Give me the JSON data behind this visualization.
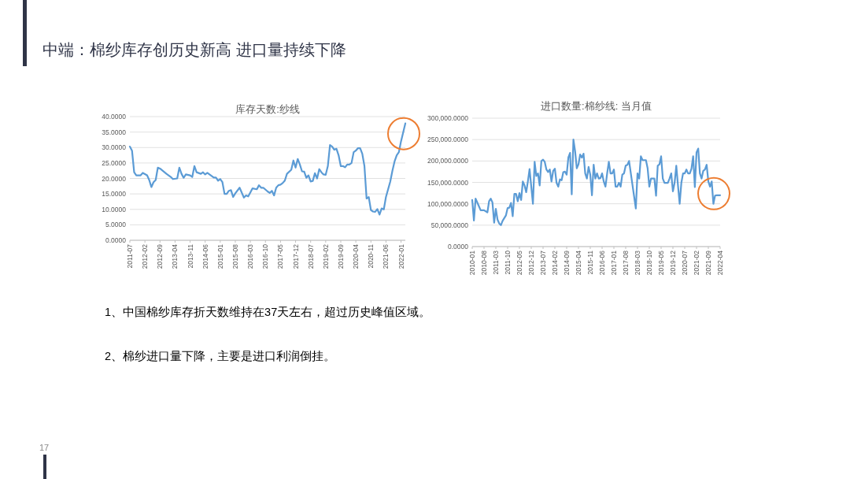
{
  "chart_data": [
    {
      "type": "line",
      "title": "库存天数:纱线",
      "grid": "y",
      "xlim": [
        "2011-07",
        "2022-03"
      ],
      "xticks": [
        "2011-07",
        "2012-02",
        "2012-09",
        "2013-04",
        "2013-11",
        "2014-06",
        "2015-01",
        "2015-08",
        "2016-03",
        "2016-10",
        "2017-05",
        "2017-12",
        "2018-07",
        "2019-02",
        "2019-09",
        "2020-04",
        "2020-11",
        "2021-06",
        "2022-01"
      ],
      "ylim": [
        0,
        40
      ],
      "yticks": [
        {
          "value": 0,
          "label": "0.0000"
        },
        {
          "value": 5,
          "label": "5.0000"
        },
        {
          "value": 10,
          "label": "10.0000"
        },
        {
          "value": 15,
          "label": "15.0000"
        },
        {
          "value": 20,
          "label": "20.0000"
        },
        {
          "value": 25,
          "label": "25.0000"
        },
        {
          "value": 30,
          "label": "30.0000"
        },
        {
          "value": 35,
          "label": "35.0000"
        },
        {
          "value": 40,
          "label": "40.0000"
        }
      ],
      "x": [
        "2011-07",
        "2011-08",
        "2011-09",
        "2011-10",
        "2011-12",
        "2012-01",
        "2012-03",
        "2012-04",
        "2012-05",
        "2012-06",
        "2012-07",
        "2012-08",
        "2012-09",
        "2012-12",
        "2013-02",
        "2013-03",
        "2013-05",
        "2013-06",
        "2013-07",
        "2013-08",
        "2013-09",
        "2013-11",
        "2013-12",
        "2014-01",
        "2014-02",
        "2014-04",
        "2014-05",
        "2014-06",
        "2014-07",
        "2014-09",
        "2014-10",
        "2014-11",
        "2014-12",
        "2015-01",
        "2015-02",
        "2015-03",
        "2015-04",
        "2015-05",
        "2015-06",
        "2015-07",
        "2015-08",
        "2015-10",
        "2015-12",
        "2016-01",
        "2016-02",
        "2016-03",
        "2016-04",
        "2016-06",
        "2016-07",
        "2016-08",
        "2016-09",
        "2016-11",
        "2016-12",
        "2017-01",
        "2017-02",
        "2017-03",
        "2017-04",
        "2017-05",
        "2017-06",
        "2017-07",
        "2017-08",
        "2017-10",
        "2017-11",
        "2017-12",
        "2018-01",
        "2018-02",
        "2018-03",
        "2018-04",
        "2018-05",
        "2018-06",
        "2018-07",
        "2018-08",
        "2018-09",
        "2018-10",
        "2018-11",
        "2018-12",
        "2019-01",
        "2019-02",
        "2019-03",
        "2019-04",
        "2019-05",
        "2019-06",
        "2019-07",
        "2019-08",
        "2019-09",
        "2019-10",
        "2019-11",
        "2019-12",
        "2020-01",
        "2020-02",
        "2020-03",
        "2020-04",
        "2020-05",
        "2020-06",
        "2020-07",
        "2020-08",
        "2020-09",
        "2020-10",
        "2020-11",
        "2020-12",
        "2021-01",
        "2021-02",
        "2021-03",
        "2021-04",
        "2021-05",
        "2021-06",
        "2021-08",
        "2021-09",
        "2021-10",
        "2021-11",
        "2021-12",
        "2022-01",
        "2022-03"
      ],
      "series": [
        {
          "color": "#5b9bd5",
          "values": [
            30.3,
            29,
            22,
            21,
            21,
            21.8,
            21,
            19.5,
            17.2,
            18.8,
            19.5,
            23.5,
            23.2,
            21.5,
            20.5,
            19.8,
            20,
            23.5,
            21.5,
            20.2,
            21.3,
            21,
            20.5,
            24,
            22,
            21.5,
            22,
            21.3,
            21.8,
            20.8,
            20.3,
            20.3,
            19.3,
            19.8,
            18.8,
            15,
            15,
            16,
            16.2,
            14,
            15.2,
            17,
            13.8,
            14.5,
            14.2,
            15.5,
            16.8,
            16.5,
            17.8,
            17,
            17,
            15.8,
            15.3,
            16,
            14.5,
            17,
            17.8,
            18,
            18.5,
            19.3,
            21.5,
            22.8,
            25.8,
            23.5,
            26.3,
            24.5,
            22.3,
            22.2,
            20.2,
            21,
            19,
            19.2,
            21.7,
            20,
            23,
            22,
            21.3,
            21.2,
            24,
            30.8,
            30.3,
            29.3,
            29.6,
            27.5,
            24,
            24,
            23.6,
            24.5,
            24.5,
            25,
            28.5,
            29,
            29.8,
            29.8,
            28,
            24,
            13.5,
            14,
            9.8,
            9.3,
            9.2,
            10.1,
            8.3,
            10.3,
            10,
            14,
            19,
            22.5,
            25.5,
            27.5,
            28.5,
            32,
            37.8
          ]
        }
      ]
    },
    {
      "type": "line",
      "title": "进口数量:棉纱线:  当月值",
      "grid": "y",
      "xlim": [
        "2010-01",
        "2022-04"
      ],
      "xticks": [
        "2010-01",
        "2010-08",
        "2011-03",
        "2011-10",
        "2012-05",
        "2012-12",
        "2013-07",
        "2014-02",
        "2014-09",
        "2015-04",
        "2015-11",
        "2016-06",
        "2017-01",
        "2017-08",
        "2018-03",
        "2018-10",
        "2019-05",
        "2019-12",
        "2020-07",
        "2021-02",
        "2021-09",
        "2022-04"
      ],
      "ylim": [
        0,
        300000
      ],
      "yticks": [
        {
          "value": 0,
          "label": "0.0000"
        },
        {
          "value": 50000,
          "label": "50,000.0000"
        },
        {
          "value": 100000,
          "label": "100,000.0000"
        },
        {
          "value": 150000,
          "label": "150,000.0000"
        },
        {
          "value": 200000,
          "label": "200,000.0000"
        },
        {
          "value": 250000,
          "label": "250,000.0000"
        },
        {
          "value": 300000,
          "label": "300,000.0000"
        }
      ],
      "x": [
        "2010-01",
        "2010-02",
        "2010-03",
        "2010-04",
        "2010-06",
        "2010-08",
        "2010-10",
        "2010-11",
        "2010-12",
        "2011-01",
        "2011-02",
        "2011-03",
        "2011-04",
        "2011-05",
        "2011-06",
        "2011-07",
        "2011-09",
        "2011-10",
        "2011-11",
        "2011-12",
        "2012-01",
        "2012-02",
        "2012-03",
        "2012-04",
        "2012-05",
        "2012-06",
        "2012-07",
        "2012-08",
        "2012-09",
        "2012-10",
        "2012-11",
        "2013-01",
        "2013-02",
        "2013-03",
        "2013-04",
        "2013-05",
        "2013-06",
        "2013-07",
        "2013-08",
        "2013-09",
        "2013-10",
        "2013-11",
        "2013-12",
        "2014-01",
        "2014-02",
        "2014-03",
        "2014-04",
        "2014-05",
        "2014-06",
        "2014-07",
        "2014-08",
        "2014-09",
        "2014-10",
        "2014-11",
        "2014-12",
        "2015-01",
        "2015-02",
        "2015-03",
        "2015-04",
        "2015-05",
        "2015-06",
        "2015-07",
        "2015-08",
        "2015-09",
        "2015-10",
        "2015-11",
        "2015-12",
        "2016-01",
        "2016-02",
        "2016-03",
        "2016-04",
        "2016-05",
        "2016-06",
        "2016-07",
        "2016-08",
        "2016-09",
        "2016-10",
        "2016-11",
        "2016-12",
        "2017-01",
        "2017-02",
        "2017-03",
        "2017-04",
        "2017-05",
        "2017-06",
        "2017-07",
        "2017-08",
        "2017-09",
        "2017-10",
        "2018-02",
        "2018-03",
        "2018-04",
        "2018-05",
        "2018-06",
        "2018-07",
        "2018-08",
        "2018-09",
        "2018-10",
        "2018-11",
        "2018-12",
        "2019-01",
        "2019-02",
        "2019-03",
        "2019-04",
        "2019-05",
        "2019-06",
        "2019-07",
        "2019-08",
        "2019-09",
        "2019-10",
        "2019-11",
        "2019-12",
        "2020-01",
        "2020-02",
        "2020-03",
        "2020-04",
        "2020-05",
        "2020-06",
        "2020-07",
        "2020-08",
        "2020-09",
        "2020-10",
        "2020-11",
        "2020-12",
        "2021-01",
        "2021-02",
        "2021-03",
        "2021-04",
        "2021-05",
        "2021-06",
        "2021-07",
        "2021-08",
        "2021-09",
        "2021-10",
        "2021-11",
        "2021-12",
        "2022-01",
        "2022-02",
        "2022-04"
      ],
      "series": [
        {
          "color": "#5b9bd5",
          "values": [
            109000,
            61000,
            112000,
            103000,
            85000,
            85000,
            80000,
            106000,
            112000,
            103000,
            56000,
            88000,
            63000,
            54000,
            50000,
            60000,
            73000,
            90000,
            91000,
            102000,
            71000,
            123000,
            123000,
            106000,
            125000,
            109000,
            152000,
            143000,
            127000,
            152000,
            181000,
            100000,
            198000,
            165000,
            171000,
            143000,
            200000,
            203000,
            198000,
            180000,
            174000,
            180000,
            152000,
            177000,
            182000,
            149000,
            140000,
            157000,
            155000,
            174000,
            175000,
            168000,
            208000,
            219000,
            122000,
            250000,
            223000,
            183000,
            192000,
            215000,
            208000,
            217000,
            171000,
            159000,
            186000,
            168000,
            120000,
            191000,
            159000,
            171000,
            159000,
            160000,
            171000,
            152000,
            140000,
            171000,
            198000,
            171000,
            171000,
            180000,
            140000,
            140000,
            149000,
            140000,
            168000,
            171000,
            189000,
            191000,
            200000,
            89000,
            171000,
            159000,
            211000,
            202000,
            202000,
            202000,
            183000,
            140000,
            159000,
            159000,
            159000,
            119000,
            189000,
            192000,
            211000,
            159000,
            149000,
            149000,
            149000,
            159000,
            171000,
            129000,
            149000,
            189000,
            143000,
            100000,
            149000,
            171000,
            171000,
            180000,
            171000,
            171000,
            182000,
            211000,
            139000,
            220000,
            229000,
            171000,
            159000,
            177000,
            180000,
            191000,
            152000,
            140000,
            152000,
            100000,
            119000,
            120000,
            120000
          ]
        }
      ]
    },
    {
      "type": "other",
      "title": "中端：棉纱库存创历史新高 进口量持续下降",
      "annotations": [
        "1、中国棉纱库存折天数维持在37天左右，超过历史峰值区域。",
        "2、棉纱进口量下降，主要是进口利润倒挂。",
        "17"
      ]
    }
  ]
}
